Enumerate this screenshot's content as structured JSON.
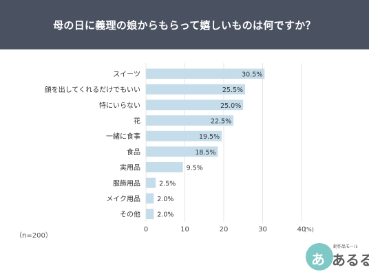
{
  "header": {
    "title": "母の日に義理の娘からもらって嬉しいものは何ですか？"
  },
  "chart_data": {
    "type": "bar",
    "orientation": "horizontal",
    "categories": [
      "スイーツ",
      "顔を出してくれるだけでもいい",
      "特にいらない",
      "花",
      "一緒に食事",
      "食品",
      "実用品",
      "服飾用品",
      "メイク用品",
      "その他"
    ],
    "values": [
      30.5,
      25.5,
      25.0,
      22.5,
      19.5,
      18.5,
      9.5,
      2.5,
      2.0,
      2.0
    ],
    "value_labels": [
      "30.5%",
      "25.5%",
      "25.0%",
      "22.5%",
      "19.5%",
      "18.5%",
      "9.5%",
      "2.5%",
      "2.0%",
      "2.0%"
    ],
    "xlim": [
      0,
      40
    ],
    "xticks": [
      0,
      10,
      20,
      30,
      40
    ],
    "xtick_labels": [
      "0",
      "10",
      "20",
      "30",
      "40"
    ],
    "unit_label": "(%)",
    "grid": true,
    "bar_color": "#c5dcea",
    "grid_color": "#e4e4e4"
  },
  "footnote": "（n=200）",
  "logo": {
    "small_text": "創作品モール",
    "main_text": "あるる",
    "glyph": "あ",
    "color": "#7ec8c5"
  }
}
